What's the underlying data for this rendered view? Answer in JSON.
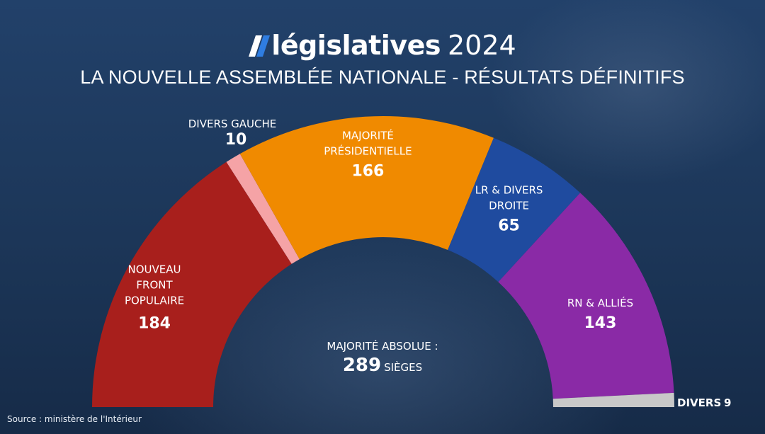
{
  "header": {
    "brand_name": "législatives",
    "year": "2024",
    "subtitle": "LA NOUVELLE ASSEMBLÉE NATIONALE - RÉSULTATS DÉFINITIFS"
  },
  "chart_data": {
    "type": "pie",
    "variant": "hemicycle",
    "total_seats": 577,
    "series": [
      {
        "name": "NOUVEAU FRONT POPULAIRE",
        "value": 184,
        "value_label": "184",
        "color": "#a81f1c"
      },
      {
        "name": "DIVERS GAUCHE",
        "value": 10,
        "value_label": "10",
        "color": "#f5a3a6"
      },
      {
        "name": "MAJORITÉ PRÉSIDENTIELLE",
        "value": 166,
        "value_label": "166",
        "color": "#f08a00"
      },
      {
        "name": "LR & DIVERS DROITE",
        "value": 65,
        "value_label": "65",
        "color": "#1f4b9f"
      },
      {
        "name": "RN & ALLIÉS",
        "value": 143,
        "value_label": "143",
        "color": "#8a2aa6"
      },
      {
        "name": "DIVERS",
        "value": 9,
        "value_label": "9",
        "color": "#c8c8c8"
      }
    ],
    "name_lines": [
      [
        "NOUVEAU",
        "FRONT",
        "POPULAIRE"
      ],
      [
        "DIVERS GAUCHE"
      ],
      [
        "MAJORITÉ",
        "PRÉSIDENTIELLE"
      ],
      [
        "LR & DIVERS",
        "DROITE"
      ],
      [
        "RN & ALLIÉS"
      ],
      [
        "DIVERS"
      ]
    ],
    "majority": {
      "label": "MAJORITÉ ABSOLUE :",
      "value": 289,
      "value_label": "289",
      "unit": "SIÈGES"
    }
  },
  "footer": {
    "source": "Source : ministère de l'Intérieur"
  },
  "colors": {
    "background": "#1d3557",
    "brand_accent": "#2f7de1"
  }
}
